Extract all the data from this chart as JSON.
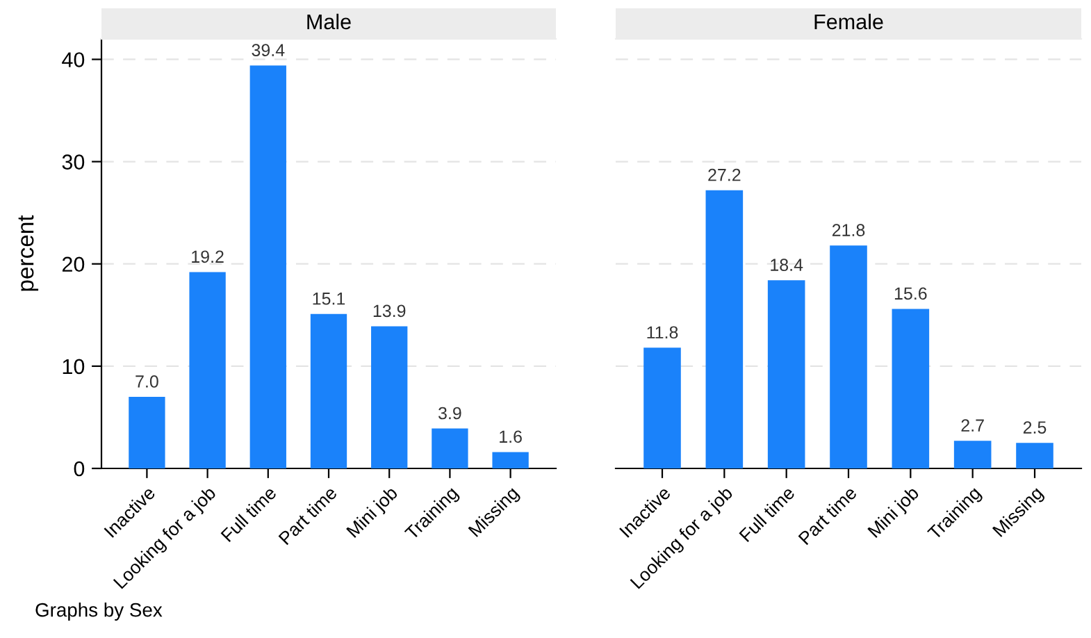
{
  "chart_data": [
    {
      "type": "bar",
      "title": "Male",
      "ylabel": "percent",
      "categories": [
        "Inactive",
        "Looking for a job",
        "Full time",
        "Part time",
        "Mini job",
        "Training",
        "Missing"
      ],
      "values": [
        7.0,
        19.2,
        39.4,
        15.1,
        13.9,
        3.9,
        1.6
      ],
      "value_labels": [
        "7.0",
        "19.2",
        "39.4",
        "15.1",
        "13.9",
        "3.9",
        "1.6"
      ],
      "color": "#1a82fa",
      "ylim": [
        0,
        42
      ],
      "yticks": [
        0,
        10,
        20,
        30,
        40
      ],
      "grid": "y",
      "legend": false,
      "annotations": [
        "Graphs by Sex"
      ]
    },
    {
      "type": "bar",
      "title": "Female",
      "categories": [
        "Inactive",
        "Looking for a job",
        "Full time",
        "Part time",
        "Mini job",
        "Training",
        "Missing"
      ],
      "values": [
        11.8,
        27.2,
        18.4,
        21.8,
        15.6,
        2.7,
        2.5
      ],
      "value_labels": [
        "11.8",
        "27.2",
        "18.4",
        "21.8",
        "15.6",
        "2.7",
        "2.5"
      ],
      "color": "#1a82fa",
      "ylim": [
        0,
        42
      ],
      "yticks": [
        0,
        10,
        20,
        30,
        40
      ],
      "grid": "y",
      "legend": false,
      "tick_labels": "x"
    }
  ]
}
